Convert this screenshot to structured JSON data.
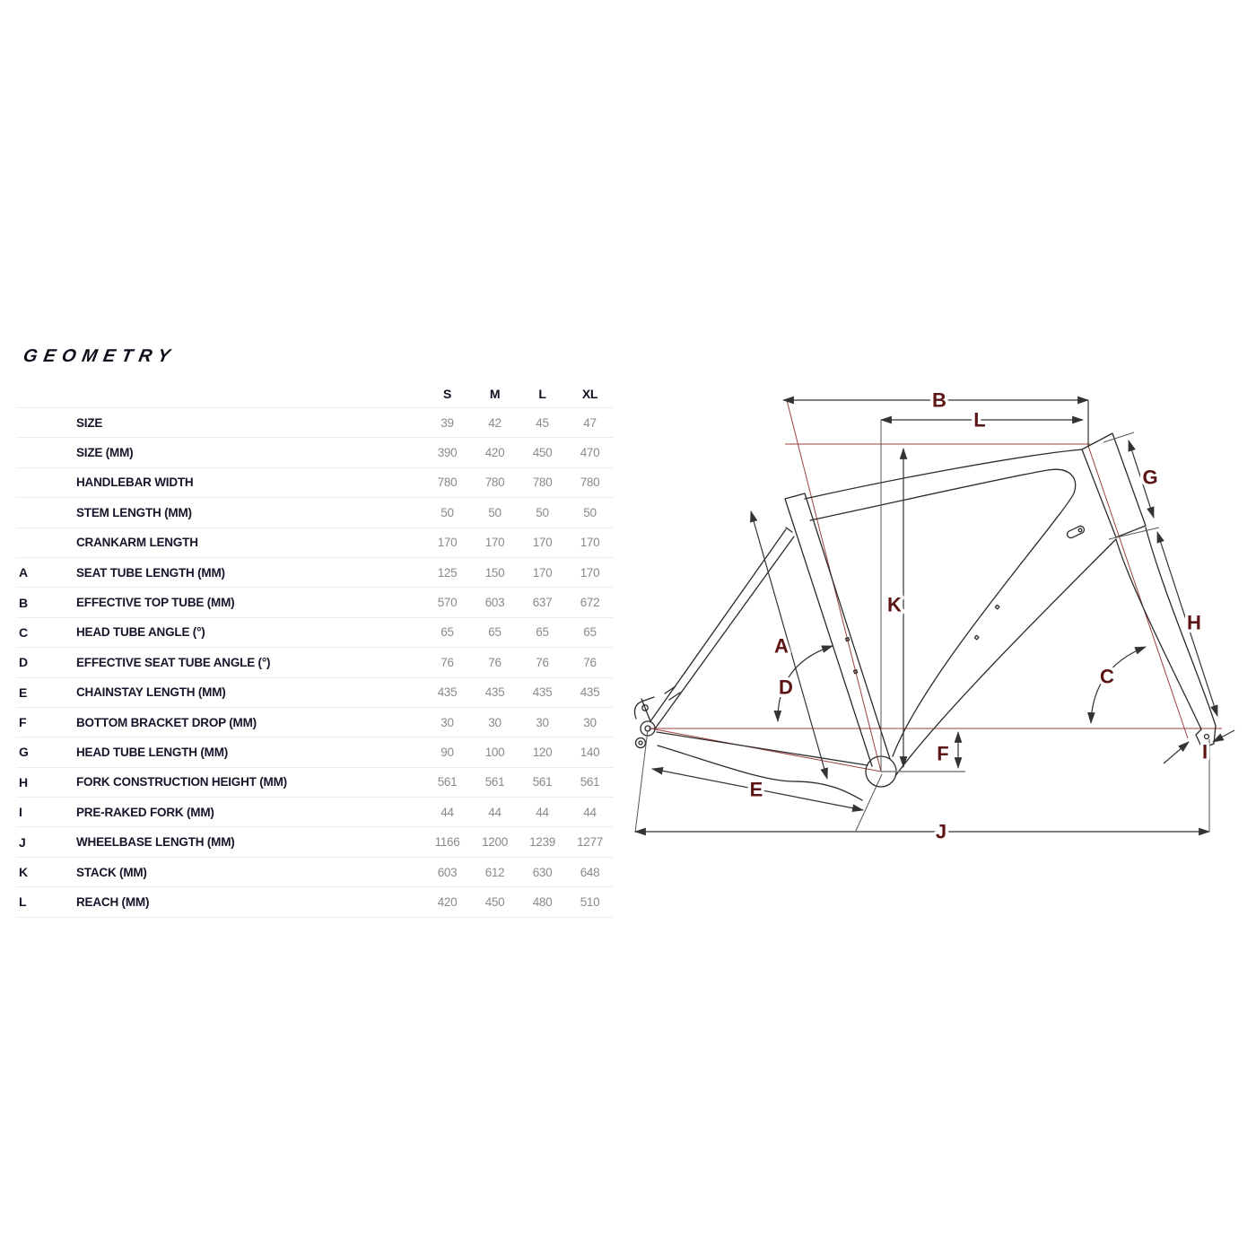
{
  "title": "GEOMETRY",
  "table": {
    "columns": [
      "S",
      "M",
      "L",
      "XL"
    ],
    "rows": [
      {
        "letter": "",
        "label": "SIZE",
        "values": [
          "39",
          "42",
          "45",
          "47"
        ]
      },
      {
        "letter": "",
        "label": "SIZE (MM)",
        "values": [
          "390",
          "420",
          "450",
          "470"
        ]
      },
      {
        "letter": "",
        "label": "HANDLEBAR WIDTH",
        "values": [
          "780",
          "780",
          "780",
          "780"
        ]
      },
      {
        "letter": "",
        "label": "STEM LENGTH (MM)",
        "values": [
          "50",
          "50",
          "50",
          "50"
        ]
      },
      {
        "letter": "",
        "label": "CRANKARM LENGTH",
        "values": [
          "170",
          "170",
          "170",
          "170"
        ]
      },
      {
        "letter": "A",
        "label": "SEAT TUBE LENGTH (MM)",
        "values": [
          "125",
          "150",
          "170",
          "170"
        ]
      },
      {
        "letter": "B",
        "label": "EFFECTIVE TOP TUBE (MM)",
        "values": [
          "570",
          "603",
          "637",
          "672"
        ]
      },
      {
        "letter": "C",
        "label": "HEAD TUBE ANGLE (°)",
        "values": [
          "65",
          "65",
          "65",
          "65"
        ]
      },
      {
        "letter": "D",
        "label": "EFFECTIVE SEAT TUBE ANGLE (°)",
        "values": [
          "76",
          "76",
          "76",
          "76"
        ]
      },
      {
        "letter": "E",
        "label": "CHAINSTAY LENGTH (MM)",
        "values": [
          "435",
          "435",
          "435",
          "435"
        ]
      },
      {
        "letter": "F",
        "label": "BOTTOM BRACKET DROP (MM)",
        "values": [
          "30",
          "30",
          "30",
          "30"
        ]
      },
      {
        "letter": "G",
        "label": "HEAD TUBE LENGTH (MM)",
        "values": [
          "90",
          "100",
          "120",
          "140"
        ]
      },
      {
        "letter": "H",
        "label": "FORK CONSTRUCTION HEIGHT (MM)",
        "values": [
          "561",
          "561",
          "561",
          "561"
        ]
      },
      {
        "letter": "I",
        "label": "PRE-RAKED FORK (MM)",
        "values": [
          "44",
          "44",
          "44",
          "44"
        ]
      },
      {
        "letter": "J",
        "label": "WHEELBASE LENGTH (MM)",
        "values": [
          "1166",
          "1200",
          "1239",
          "1277"
        ]
      },
      {
        "letter": "K",
        "label": "STACK (MM)",
        "values": [
          "603",
          "612",
          "630",
          "648"
        ]
      },
      {
        "letter": "L",
        "label": "REACH (MM)",
        "values": [
          "420",
          "450",
          "480",
          "510"
        ]
      }
    ]
  },
  "diagram": {
    "labels": {
      "A": "A",
      "B": "B",
      "C": "C",
      "D": "D",
      "E": "E",
      "F": "F",
      "G": "G",
      "H": "H",
      "I": "I",
      "J": "J",
      "K": "K",
      "L": "L"
    },
    "colors": {
      "dimension_label": "#5c1414",
      "reference_line": "#9b4040",
      "frame_line": "#2b2b2b",
      "dimension_line": "#333333",
      "table_text": "#16162b",
      "table_value": "#8a8a8a",
      "separator": "#ececec"
    }
  }
}
